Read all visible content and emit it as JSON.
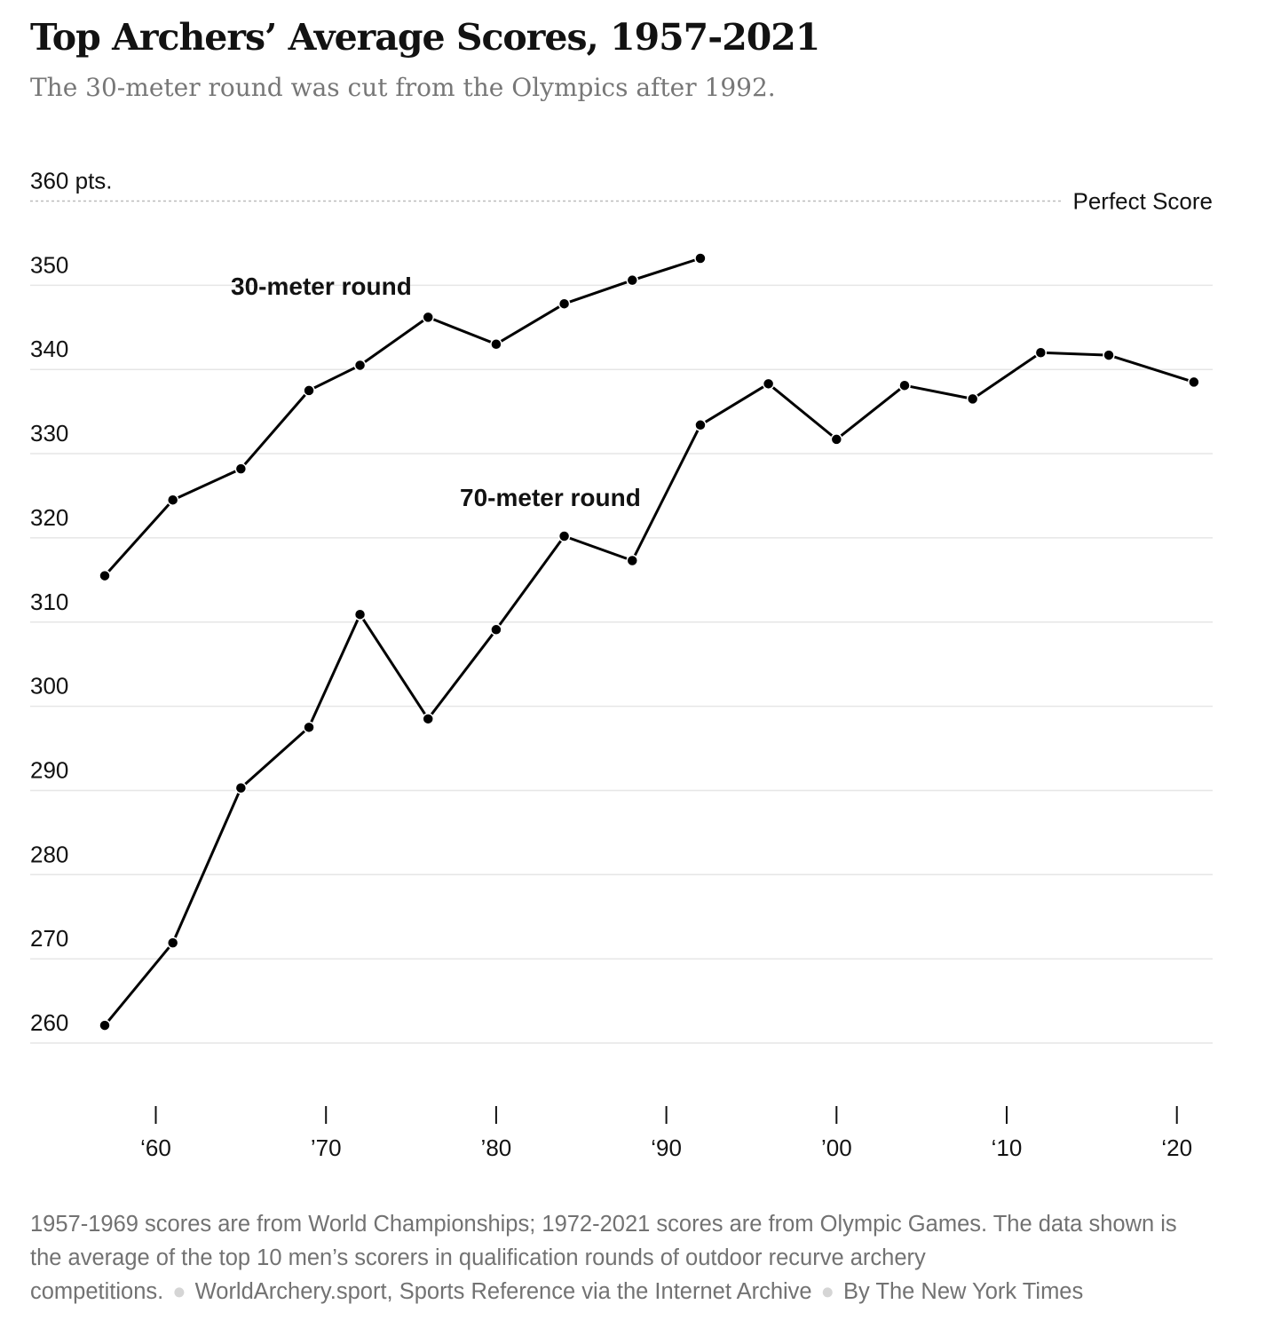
{
  "header": {
    "title": "Top Archers’ Average Scores, 1957-2021",
    "subtitle": "The 30-meter round was cut from the Olympics after 1992."
  },
  "colors": {
    "line": "#000000",
    "gridline": "#e6e6e6",
    "reference_line": "#bbbbbb",
    "note_text": "#727272"
  },
  "chart_data": {
    "type": "line",
    "title": "Top Archers’ Average Scores, 1957-2021",
    "subtitle": "The 30-meter round was cut from the Olympics after 1992.",
    "ylim": [
      260,
      360
    ],
    "xlim": [
      1957,
      2021
    ],
    "grid": true,
    "y_ticks": [
      {
        "value": 360,
        "label": "360 pts."
      },
      {
        "value": 350,
        "label": "350"
      },
      {
        "value": 340,
        "label": "340"
      },
      {
        "value": 330,
        "label": "330"
      },
      {
        "value": 320,
        "label": "320"
      },
      {
        "value": 310,
        "label": "310"
      },
      {
        "value": 300,
        "label": "300"
      },
      {
        "value": 290,
        "label": "290"
      },
      {
        "value": 280,
        "label": "280"
      },
      {
        "value": 270,
        "label": "270"
      },
      {
        "value": 260,
        "label": "260"
      }
    ],
    "x_ticks": [
      {
        "value": 1960,
        "label": "‘60"
      },
      {
        "value": 1970,
        "label": "’70"
      },
      {
        "value": 1980,
        "label": "’80"
      },
      {
        "value": 1990,
        "label": "‘90"
      },
      {
        "value": 2000,
        "label": "’00"
      },
      {
        "value": 2010,
        "label": "‘10"
      },
      {
        "value": 2020,
        "label": "‘20"
      }
    ],
    "reference_line": {
      "value": 360,
      "label": "Perfect Score"
    },
    "series": [
      {
        "name": "30-meter round",
        "points": [
          {
            "x": 1957,
            "y": 315.5
          },
          {
            "x": 1961,
            "y": 324.5
          },
          {
            "x": 1965,
            "y": 328.2
          },
          {
            "x": 1969,
            "y": 337.5
          },
          {
            "x": 1972,
            "y": 340.5
          },
          {
            "x": 1976,
            "y": 346.2
          },
          {
            "x": 1980,
            "y": 343.0
          },
          {
            "x": 1984,
            "y": 347.8
          },
          {
            "x": 1988,
            "y": 350.6
          },
          {
            "x": 1992,
            "y": 353.2
          }
        ]
      },
      {
        "name": "70-meter round",
        "points": [
          {
            "x": 1957,
            "y": 262.1
          },
          {
            "x": 1961,
            "y": 271.9
          },
          {
            "x": 1965,
            "y": 290.3
          },
          {
            "x": 1969,
            "y": 297.5
          },
          {
            "x": 1972,
            "y": 310.9
          },
          {
            "x": 1976,
            "y": 298.5
          },
          {
            "x": 1980,
            "y": 309.1
          },
          {
            "x": 1984,
            "y": 320.2
          },
          {
            "x": 1988,
            "y": 317.3
          },
          {
            "x": 1992,
            "y": 333.4
          },
          {
            "x": 1996,
            "y": 338.3
          },
          {
            "x": 2000,
            "y": 331.7
          },
          {
            "x": 2004,
            "y": 338.1
          },
          {
            "x": 2008,
            "y": 336.5
          },
          {
            "x": 2012,
            "y": 342.0
          },
          {
            "x": 2016,
            "y": 341.7
          },
          {
            "x": 2021,
            "y": 338.5
          }
        ]
      }
    ]
  },
  "footer": {
    "note": "1957-1969 scores are from World Championships; 1972-2021 scores are from Olympic Games. The data shown is the average of the top 10 men’s scorers in qualification rounds of outdoor recurve archery competitions.",
    "source": "WorldArchery.sport, Sports Reference via the Internet Archive",
    "credit": "By The New York Times"
  }
}
